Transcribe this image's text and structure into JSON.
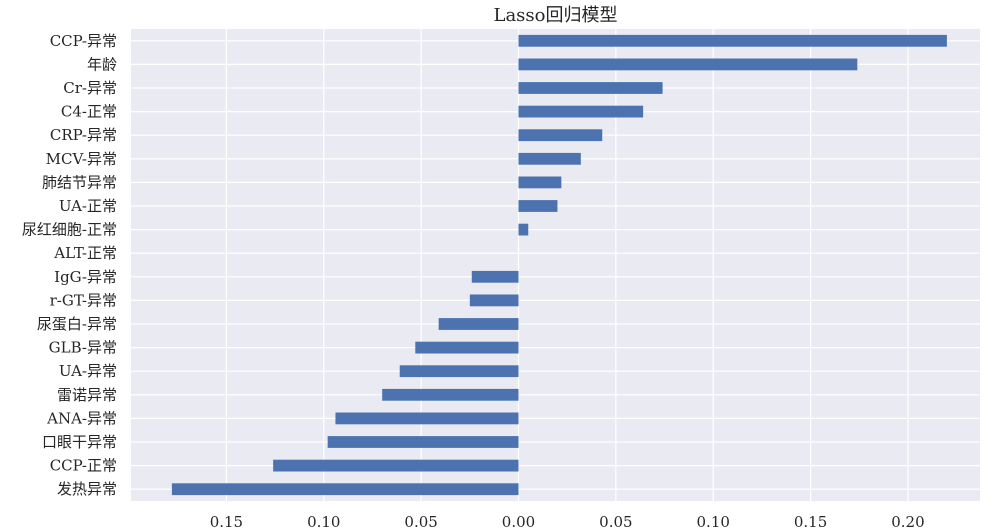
{
  "chart_data": {
    "type": "bar",
    "orientation": "horizontal",
    "title": "Lasso回归模型",
    "xlabel": "",
    "ylabel": "",
    "categories": [
      "CCP-异常",
      "年龄",
      "Cr-异常",
      "C4-正常",
      "CRP-异常",
      "MCV-异常",
      "肺结节异常",
      "UA-正常",
      "尿红细胞-正常",
      "ALT-正常",
      "IgG-异常",
      "r-GT-异常",
      "尿蛋白-异常",
      "GLB-异常",
      "UA-异常",
      "雷诺异常",
      "ANA-异常",
      "口眼干异常",
      "CCP-正常",
      "发热异常"
    ],
    "values": [
      0.22,
      0.174,
      0.074,
      0.064,
      0.043,
      0.032,
      0.022,
      0.02,
      0.005,
      0.0,
      -0.024,
      -0.025,
      -0.041,
      -0.053,
      -0.061,
      -0.07,
      -0.094,
      -0.098,
      -0.126,
      -0.178
    ],
    "xlim": [
      -0.199,
      0.237
    ],
    "xticks": [
      -0.15,
      -0.1,
      -0.05,
      0.0,
      0.05,
      0.1,
      0.15,
      0.2
    ],
    "xtick_labels": [
      "0.15",
      "0.10",
      "0.05",
      "0.00",
      "0.05",
      "0.10",
      "0.15",
      "0.20"
    ],
    "grid": true,
    "colors": {
      "bar": "#4c72b0",
      "background": "#eaeaf2",
      "grid": "#ffffff"
    }
  }
}
